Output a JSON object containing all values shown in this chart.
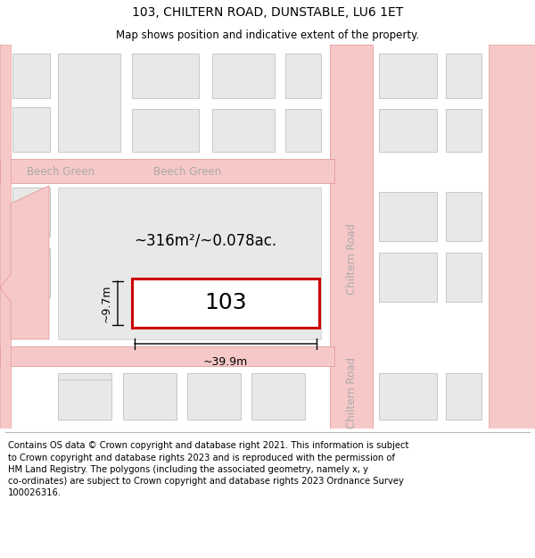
{
  "title": "103, CHILTERN ROAD, DUNSTABLE, LU6 1ET",
  "subtitle": "Map shows position and indicative extent of the property.",
  "footer": "Contains OS data © Crown copyright and database right 2021. This information is subject\nto Crown copyright and database rights 2023 and is reproduced with the permission of\nHM Land Registry. The polygons (including the associated geometry, namely x, y\nco-ordinates) are subject to Crown copyright and database rights 2023 Ordnance Survey\n100026316.",
  "road_color": "#f7c8c8",
  "road_border": "#e09090",
  "building_fill": "#e8e8e8",
  "building_border": "#c8c8c8",
  "highlight_fill": "#ffffff",
  "highlight_border": "#cc0000",
  "street_label_color": "#aaaaaa",
  "area_text": "~316m²/~0.078ac.",
  "plot_label": "103",
  "width_label": "~39.9m",
  "height_label": "~9.7m",
  "title_fontsize": 10,
  "subtitle_fontsize": 8.5,
  "footer_fontsize": 7.2
}
